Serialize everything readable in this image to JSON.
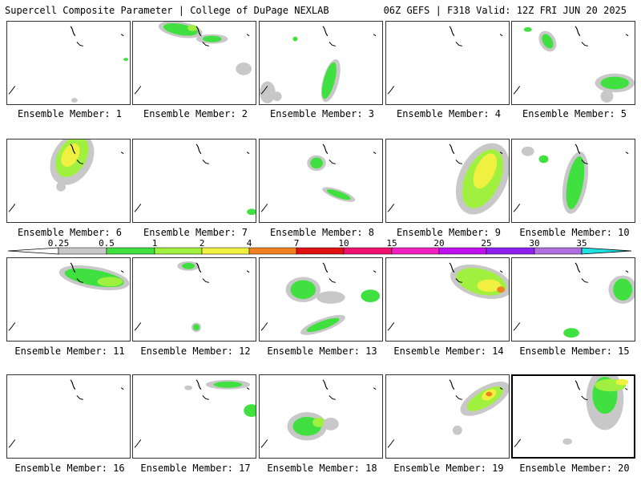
{
  "header": {
    "title_left": "Supercell Composite Parameter | College of DuPage NEXLAB",
    "title_right": "06Z GEFS | F318 Valid: 12Z FRI JUN 20 2025"
  },
  "member_label_prefix": "Ensemble Member: ",
  "members": [
    {
      "label": "Ensemble Member: 1"
    },
    {
      "label": "Ensemble Member: 2"
    },
    {
      "label": "Ensemble Member: 3"
    },
    {
      "label": "Ensemble Member: 4"
    },
    {
      "label": "Ensemble Member: 5"
    },
    {
      "label": "Ensemble Member: 6"
    },
    {
      "label": "Ensemble Member: 7"
    },
    {
      "label": "Ensemble Member: 8"
    },
    {
      "label": "Ensemble Member: 9"
    },
    {
      "label": "Ensemble Member: 10"
    },
    {
      "label": "Ensemble Member: 11"
    },
    {
      "label": "Ensemble Member: 12"
    },
    {
      "label": "Ensemble Member: 13"
    },
    {
      "label": "Ensemble Member: 14"
    },
    {
      "label": "Ensemble Member: 15"
    },
    {
      "label": "Ensemble Member: 16"
    },
    {
      "label": "Ensemble Member: 17"
    },
    {
      "label": "Ensemble Member: 18"
    },
    {
      "label": "Ensemble Member: 19"
    },
    {
      "label": "Ensemble Member: 20"
    }
  ],
  "selected_member": 20,
  "colorbar": {
    "ticks": [
      "0.25",
      "0.5",
      "1",
      "2",
      "4",
      "7",
      "10",
      "15",
      "20",
      "25",
      "30",
      "35"
    ],
    "colors": [
      "#ffffff",
      "#c8c8c8",
      "#40e040",
      "#a0f040",
      "#f0f040",
      "#f08020",
      "#e01010",
      "#f01070",
      "#f020c0",
      "#c010f0",
      "#9020f0",
      "#b070e0",
      "#20e0e0"
    ]
  }
}
